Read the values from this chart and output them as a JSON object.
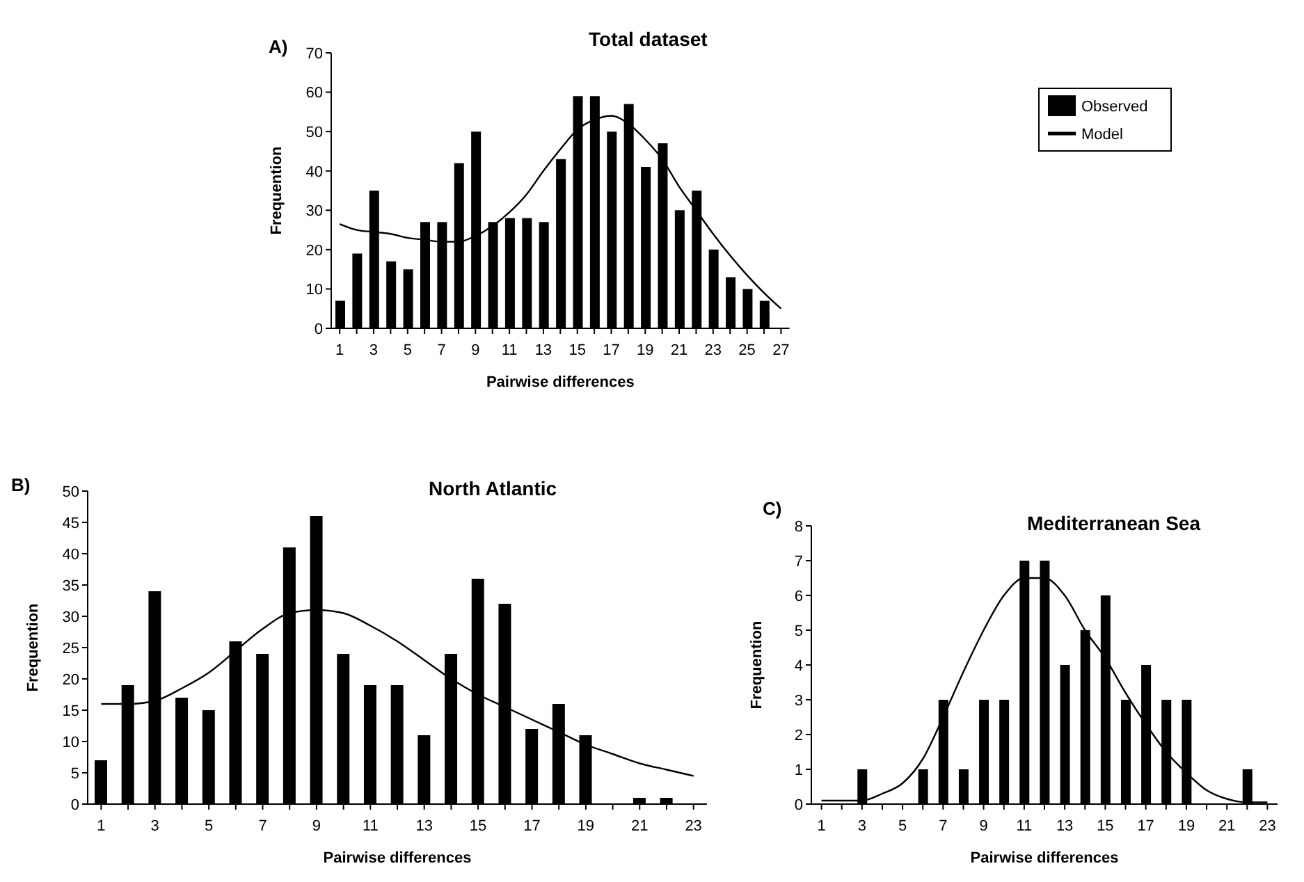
{
  "chart_data": [
    {
      "type": "bar",
      "title": "Total dataset",
      "xlabel": "Pairwise differences",
      "ylabel": "Frequention",
      "annotations": [
        "A)"
      ],
      "x": [
        1,
        2,
        3,
        4,
        5,
        6,
        7,
        8,
        9,
        10,
        11,
        12,
        13,
        14,
        15,
        16,
        17,
        18,
        19,
        20,
        21,
        22,
        23,
        24,
        25,
        26,
        27
      ],
      "series": [
        {
          "name": "Observed",
          "color": "#000000",
          "values": [
            7,
            19,
            35,
            17,
            15,
            27,
            27,
            42,
            50,
            27,
            28,
            28,
            27,
            43,
            59,
            59,
            50,
            57,
            41,
            47,
            30,
            35,
            20,
            13,
            10,
            7,
            null
          ]
        },
        {
          "name": "Model",
          "type": "line",
          "color": "#000000",
          "values": [
            26.5,
            25,
            24.5,
            24,
            23,
            22.5,
            22,
            22,
            23.5,
            26,
            29.5,
            34,
            40,
            45.5,
            50.5,
            53,
            54,
            52,
            48,
            43,
            36,
            30,
            24,
            18.5,
            13.5,
            9,
            5
          ]
        }
      ],
      "xlim": [
        0.5,
        27.5
      ],
      "xticks": [
        1,
        {
          "value": 2,
          "label": null
        },
        3,
        {
          "value": 4,
          "label": null
        },
        5,
        {
          "value": 6,
          "label": null
        },
        7,
        {
          "value": 8,
          "label": null
        },
        9,
        {
          "value": 10,
          "label": null
        },
        11,
        {
          "value": 12,
          "label": null
        },
        13,
        {
          "value": 14,
          "label": null
        },
        15,
        {
          "value": 16,
          "label": null
        },
        17,
        {
          "value": 18,
          "label": null
        },
        19,
        {
          "value": 20,
          "label": null
        },
        21,
        {
          "value": 22,
          "label": null
        },
        23,
        {
          "value": 24,
          "label": null
        },
        25,
        {
          "value": 26,
          "label": null
        },
        27
      ],
      "ylim": [
        0,
        70
      ],
      "yticks": [
        0,
        10,
        20,
        30,
        40,
        50,
        60,
        70
      ],
      "legend": "top right",
      "marker": "none"
    },
    {
      "type": "bar",
      "title": "North Atlantic",
      "xlabel": "Pairwise differences",
      "ylabel": "Frequention",
      "annotations": [
        "B)"
      ],
      "x": [
        1,
        2,
        3,
        4,
        5,
        6,
        7,
        8,
        9,
        10,
        11,
        12,
        13,
        14,
        15,
        16,
        17,
        18,
        19,
        20,
        21,
        22,
        23
      ],
      "series": [
        {
          "color": "#000000",
          "values": [
            7,
            19,
            34,
            17,
            15,
            26,
            24,
            41,
            46,
            24,
            19,
            19,
            11,
            24,
            36,
            32,
            12,
            16,
            11,
            null,
            1,
            1,
            null
          ]
        },
        {
          "type": "line",
          "color": "#000000",
          "values": [
            16,
            16,
            16.5,
            18.5,
            21,
            24.5,
            28,
            30.5,
            31,
            30.5,
            28.5,
            26,
            23,
            20,
            17.5,
            15.5,
            13.5,
            11.5,
            9.5,
            8,
            6.5,
            5.5,
            4.5
          ]
        }
      ],
      "xlim": [
        0.5,
        23.5
      ],
      "xticks": [
        1,
        {
          "value": 2,
          "label": null
        },
        3,
        {
          "value": 4,
          "label": null
        },
        5,
        {
          "value": 6,
          "label": null
        },
        7,
        {
          "value": 8,
          "label": null
        },
        9,
        {
          "value": 10,
          "label": null
        },
        11,
        {
          "value": 12,
          "label": null
        },
        13,
        {
          "value": 14,
          "label": null
        },
        15,
        {
          "value": 16,
          "label": null
        },
        17,
        {
          "value": 18,
          "label": null
        },
        19,
        {
          "value": 20,
          "label": null
        },
        21,
        {
          "value": 22,
          "label": null
        },
        23
      ],
      "ylim": [
        0,
        50
      ],
      "yticks": [
        0,
        5,
        10,
        15,
        20,
        25,
        30,
        35,
        40,
        45,
        50
      ],
      "marker": "none"
    },
    {
      "type": "bar",
      "title": "Mediterranean Sea",
      "xlabel": "Pairwise differences",
      "ylabel": "Frequention",
      "annotations": [
        "C)"
      ],
      "x": [
        1,
        2,
        3,
        4,
        5,
        6,
        7,
        8,
        9,
        10,
        11,
        12,
        13,
        14,
        15,
        16,
        17,
        18,
        19,
        20,
        21,
        22,
        23
      ],
      "series": [
        {
          "color": "#000000",
          "values": [
            null,
            null,
            1,
            null,
            null,
            1,
            3,
            1,
            3,
            3,
            7,
            7,
            4,
            5,
            6,
            3,
            4,
            3,
            3,
            null,
            null,
            1,
            null
          ]
        },
        {
          "type": "line",
          "color": "#000000",
          "values": [
            0.1,
            0.1,
            0.1,
            0.3,
            0.6,
            1.3,
            2.5,
            3.8,
            5,
            6,
            6.5,
            6.5,
            6,
            5,
            4.2,
            3.2,
            2.3,
            1.5,
            0.9,
            0.4,
            0.15,
            0.05,
            0.05
          ]
        }
      ],
      "xlim": [
        0.5,
        23.5
      ],
      "xticks": [
        1,
        {
          "value": 2,
          "label": null
        },
        3,
        {
          "value": 4,
          "label": null
        },
        5,
        {
          "value": 6,
          "label": null
        },
        7,
        {
          "value": 8,
          "label": null
        },
        9,
        {
          "value": 10,
          "label": null
        },
        11,
        {
          "value": 12,
          "label": null
        },
        13,
        {
          "value": 14,
          "label": null
        },
        15,
        {
          "value": 16,
          "label": null
        },
        17,
        {
          "value": 18,
          "label": null
        },
        19,
        {
          "value": 20,
          "label": null
        },
        21,
        {
          "value": 22,
          "label": null
        },
        23
      ],
      "ylim": [
        0,
        8
      ],
      "yticks": [
        0,
        1,
        2,
        3,
        4,
        5,
        6,
        7,
        8
      ],
      "marker": "none"
    }
  ]
}
